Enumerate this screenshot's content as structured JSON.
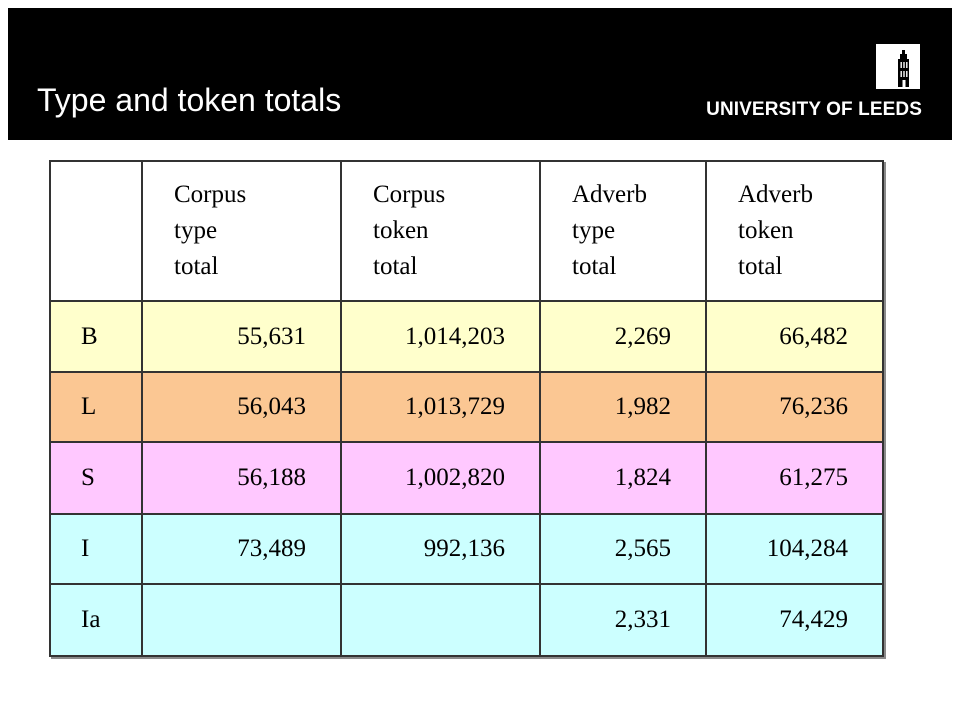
{
  "slide": {
    "title": "Type and token totals",
    "logo_text": "UNIVERSITY OF LEEDS",
    "logo_icon": "tower-icon"
  },
  "colors": {
    "header_bg": "#000000",
    "row_b": "#ffffcc",
    "row_l": "#fbc793",
    "row_s": "#ffc8ff",
    "row_i": "#ccffff",
    "row_ia": "#ccffff"
  },
  "table": {
    "headers": [
      "",
      "Corpus type total",
      "Corpus token total",
      "Adverb type total",
      "Adverb token total"
    ],
    "header_lines": [
      [],
      [
        "Corpus",
        "type",
        "total"
      ],
      [
        "Corpus",
        "token",
        "total"
      ],
      [
        "Adverb",
        "type",
        "total"
      ],
      [
        "Adverb",
        "token",
        "total"
      ]
    ],
    "rows": [
      {
        "label": "B",
        "corpus_type": "55,631",
        "corpus_token": "1,014,203",
        "adverb_type": "2,269",
        "adverb_token": "66,482"
      },
      {
        "label": "L",
        "corpus_type": "56,043",
        "corpus_token": "1,013,729",
        "adverb_type": "1,982",
        "adverb_token": "76,236"
      },
      {
        "label": "S",
        "corpus_type": "56,188",
        "corpus_token": "1,002,820",
        "adverb_type": "1,824",
        "adverb_token": "61,275"
      },
      {
        "label": "I",
        "corpus_type": "73,489",
        "corpus_token": "992,136",
        "adverb_type": "2,565",
        "adverb_token": "104,284"
      },
      {
        "label": "Ia",
        "corpus_type": "",
        "corpus_token": "",
        "adverb_type": "2,331",
        "adverb_token": "74,429"
      }
    ]
  }
}
